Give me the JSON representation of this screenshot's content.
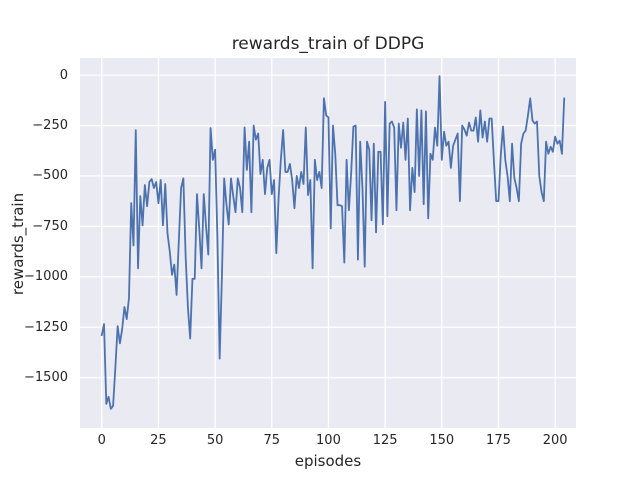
{
  "figure": {
    "background": "#ffffff"
  },
  "chart_data": {
    "type": "line",
    "title": "rewards_train of DDPG",
    "xlabel": "episodes",
    "ylabel": "rewards_train",
    "axes_background": "#eaeaf2",
    "grid": true,
    "grid_color": "#ffffff",
    "text_color": "#262626",
    "line_color": "#4c72b0",
    "line_width": 1.8,
    "legend_position": "none",
    "xlim": [
      -9.6,
      209.2
    ],
    "ylim": [
      -1750,
      85
    ],
    "x_ticks": [
      0,
      25,
      50,
      75,
      100,
      125,
      150,
      175,
      200
    ],
    "y_ticks": [
      0,
      -250,
      -500,
      -750,
      -1000,
      -1250,
      -1500
    ],
    "series": [
      {
        "name": "rewards_train",
        "x_start": 0,
        "x_step": 1,
        "values": [
          -1290,
          -1235,
          -1630,
          -1595,
          -1655,
          -1640,
          -1450,
          -1245,
          -1330,
          -1260,
          -1150,
          -1210,
          -1105,
          -635,
          -845,
          -273,
          -958,
          -600,
          -745,
          -545,
          -650,
          -530,
          -515,
          -560,
          -530,
          -635,
          -520,
          -745,
          -540,
          -785,
          -875,
          -990,
          -940,
          -1090,
          -820,
          -560,
          -512,
          -900,
          -1150,
          -1306,
          -1010,
          -1010,
          -590,
          -760,
          -958,
          -590,
          -750,
          -890,
          -262,
          -420,
          -370,
          -800,
          -1406,
          -1000,
          -512,
          -640,
          -740,
          -512,
          -600,
          -680,
          -512,
          -560,
          -680,
          -260,
          -470,
          -330,
          -680,
          -250,
          -320,
          -290,
          -490,
          -420,
          -590,
          -460,
          -420,
          -590,
          -520,
          -883,
          -610,
          -420,
          -272,
          -480,
          -480,
          -440,
          -520,
          -660,
          -500,
          -560,
          -480,
          -540,
          -260,
          -595,
          -520,
          -958,
          -420,
          -520,
          -480,
          -560,
          -115,
          -200,
          -210,
          -760,
          -250,
          -390,
          -645,
          -645,
          -650,
          -930,
          -420,
          -670,
          -490,
          -255,
          -250,
          -915,
          -330,
          -560,
          -950,
          -330,
          -370,
          -720,
          -340,
          -780,
          -380,
          -380,
          -740,
          -133,
          -700,
          -240,
          -230,
          -260,
          -670,
          -240,
          -360,
          -235,
          -420,
          -215,
          -670,
          -460,
          -580,
          -170,
          -500,
          -175,
          -640,
          -180,
          -710,
          -390,
          -420,
          -260,
          -350,
          -5,
          -420,
          -280,
          -350,
          -330,
          -460,
          -350,
          -320,
          -290,
          -625,
          -250,
          -270,
          -300,
          -235,
          -275,
          -275,
          -210,
          -330,
          -175,
          -310,
          -230,
          -330,
          -215,
          -215,
          -430,
          -625,
          -625,
          -400,
          -255,
          -420,
          -500,
          -625,
          -340,
          -510,
          -560,
          -625,
          -340,
          -290,
          -275,
          -200,
          -115,
          -225,
          -240,
          -230,
          -500,
          -580,
          -625,
          -330,
          -390,
          -355,
          -380,
          -305,
          -340,
          -325,
          -390,
          -115
        ]
      }
    ]
  }
}
